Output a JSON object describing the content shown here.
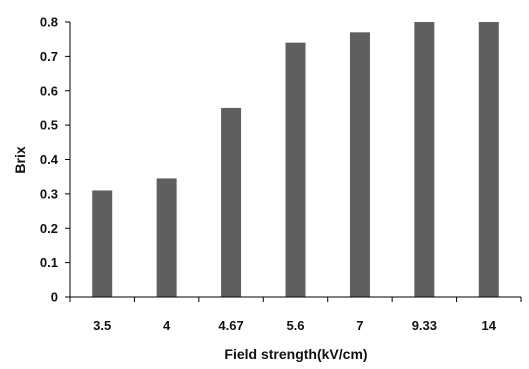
{
  "chart_data": {
    "type": "bar",
    "title": "",
    "xlabel": "Field strength(kV/cm)",
    "ylabel": "Brix",
    "categories": [
      "3.5",
      "4",
      "4.67",
      "5.6",
      "7",
      "9.33",
      "14"
    ],
    "values": [
      0.31,
      0.345,
      0.55,
      0.74,
      0.77,
      0.8,
      0.8
    ],
    "ylim": [
      0,
      0.8
    ],
    "yticks": [
      "0",
      "0.1",
      "0.2",
      "0.3",
      "0.4",
      "0.5",
      "0.6",
      "0.7",
      "0.8"
    ],
    "grid": false,
    "legend": "none",
    "bar_color": "#5f5f5f",
    "axis_color": "#000000"
  }
}
